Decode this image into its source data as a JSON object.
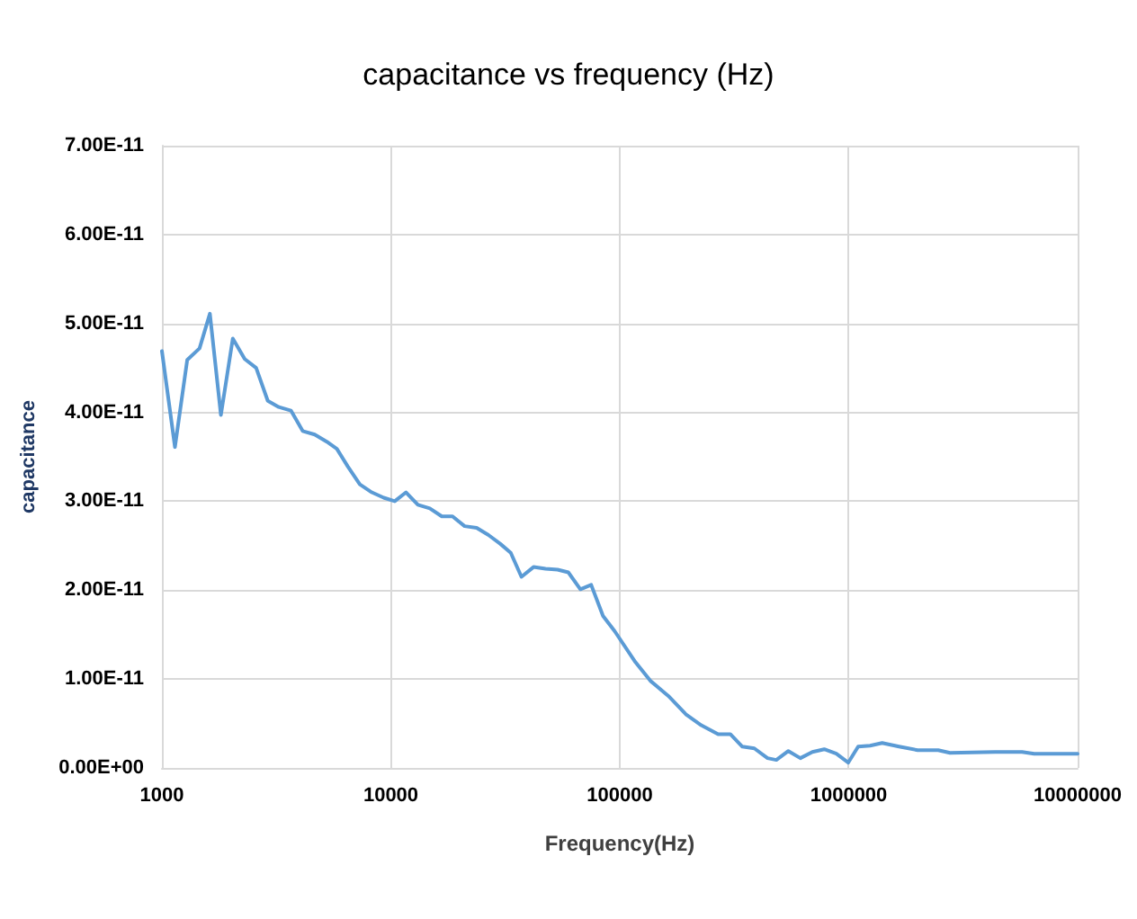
{
  "chart_data": {
    "type": "line",
    "title": "capacitance vs frequency (Hz)",
    "xlabel": "Frequency(Hz)",
    "ylabel": "capacitance",
    "log": "x",
    "grid": true,
    "marker": "none",
    "line_style": "solid",
    "xlim": [
      1000,
      10000000
    ],
    "xticks": [
      1000,
      10000,
      100000,
      1000000,
      10000000
    ],
    "ylim": [
      0,
      7e-11
    ],
    "yticks": [
      {
        "value": 0,
        "label": "0.00E+00"
      },
      {
        "value": 1e-11,
        "label": "1.00E-11"
      },
      {
        "value": 2e-11,
        "label": "2.00E-11"
      },
      {
        "value": 3e-11,
        "label": "3.00E-11"
      },
      {
        "value": 4e-11,
        "label": "4.00E-11"
      },
      {
        "value": 5e-11,
        "label": "5.00E-11"
      },
      {
        "value": 6e-11,
        "label": "6.00E-11"
      },
      {
        "value": 7e-11,
        "label": "7.00E-11"
      }
    ],
    "series": [
      {
        "color": "#5b9bd5",
        "x": [
          1000,
          1140,
          1290,
          1460,
          1620,
          1810,
          2040,
          2300,
          2580,
          2900,
          3240,
          3660,
          4120,
          4650,
          5250,
          5810,
          6490,
          7320,
          8260,
          9310,
          10400,
          11650,
          13130,
          14800,
          16700,
          18600,
          21000,
          23700,
          26700,
          30100,
          33400,
          37200,
          42000,
          47400,
          53500,
          59600,
          67300,
          75000,
          84500,
          94900,
          117000,
          136000,
          163000,
          195000,
          227000,
          269000,
          304000,
          343000,
          387000,
          442000,
          483000,
          545000,
          615000,
          694000,
          782000,
          883000,
          996000,
          1100000,
          1240000,
          1400000,
          1660000,
          2000000,
          2460000,
          2770000,
          4360000,
          5720000,
          6460000,
          10000000
        ],
        "values": [
          4.69e-11,
          3.61e-11,
          4.59e-11,
          4.72e-11,
          5.11e-11,
          3.97e-11,
          4.83e-11,
          4.6e-11,
          4.5e-11,
          4.13e-11,
          4.06e-11,
          4.02e-11,
          3.79e-11,
          3.75e-11,
          3.67e-11,
          3.59e-11,
          3.39e-11,
          3.19e-11,
          3.1e-11,
          3.04e-11,
          3e-11,
          3.1e-11,
          2.96e-11,
          2.92e-11,
          2.83e-11,
          2.83e-11,
          2.72e-11,
          2.7e-11,
          2.62e-11,
          2.52e-11,
          2.42e-11,
          2.15e-11,
          2.26e-11,
          2.24e-11,
          2.23e-11,
          2.2e-11,
          2.01e-11,
          2.06e-11,
          1.71e-11,
          1.54e-11,
          1.19e-11,
          9.8e-12,
          8.1e-12,
          6e-12,
          4.8e-12,
          3.8e-12,
          3.8e-12,
          2.4e-12,
          2.2e-12,
          1.1e-12,
          9e-13,
          1.9e-12,
          1.1e-12,
          1.8e-12,
          2.1e-12,
          1.6e-12,
          6e-13,
          2.4e-12,
          2.5e-12,
          2.8e-12,
          2.4e-12,
          2e-12,
          2e-12,
          1.7e-12,
          1.8e-12,
          1.8e-12,
          1.6e-12,
          1.6e-12
        ]
      }
    ]
  }
}
